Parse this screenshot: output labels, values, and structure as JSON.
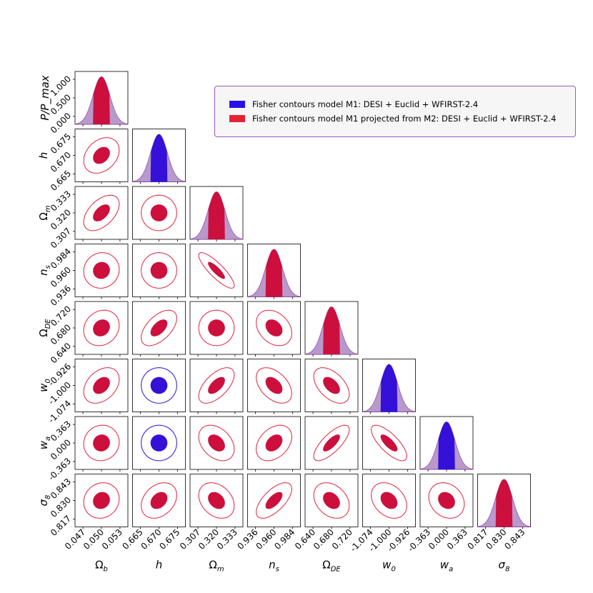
{
  "chart_data": {
    "type": "corner-plot",
    "title": "",
    "diag_ylabel": "P/P_max",
    "diag_ticks": [
      "0.000",
      "0.500",
      "1.000"
    ],
    "params": [
      {
        "key": "Omega_b",
        "label_base": "Ω",
        "label_sub": "b",
        "ticks": [
          "0.047",
          "0.050",
          "0.053"
        ],
        "center": 0.05
      },
      {
        "key": "h",
        "label_base": "h",
        "label_sub": "",
        "ticks": [
          "0.665",
          "0.670",
          "0.675"
        ],
        "center": 0.67
      },
      {
        "key": "Omega_m",
        "label_base": "Ω",
        "label_sub": "m",
        "ticks": [
          "0.307",
          "0.320",
          "0.333"
        ],
        "center": 0.32
      },
      {
        "key": "n_s",
        "label_base": "n",
        "label_sub": "s",
        "ticks": [
          "0.936",
          "0.960",
          "0.984"
        ],
        "center": 0.96
      },
      {
        "key": "Omega_DE",
        "label_base": "Ω",
        "label_sub": "DE",
        "ticks": [
          "0.640",
          "0.680",
          "0.720"
        ],
        "center": 0.68
      },
      {
        "key": "w0",
        "label_base": "w",
        "label_sub": "0",
        "ticks": [
          "-1.074",
          "-1.000",
          "-0.926"
        ],
        "center": -1.0
      },
      {
        "key": "wa",
        "label_base": "w",
        "label_sub": "a",
        "ticks": [
          "-0.363",
          "0.000",
          "0.363"
        ],
        "center": 0.0
      },
      {
        "key": "sigma8",
        "label_base": "σ",
        "label_sub": "8",
        "ticks": [
          "0.817",
          "0.830",
          "0.843"
        ],
        "center": 0.83
      }
    ],
    "correlations": [
      [
        0,
        1,
        0.3
      ],
      [
        0,
        2,
        0.5
      ],
      [
        0,
        3,
        0.05
      ],
      [
        0,
        4,
        0.15
      ],
      [
        0,
        5,
        0.35
      ],
      [
        0,
        6,
        0.05
      ],
      [
        0,
        7,
        0.1
      ],
      [
        1,
        2,
        0.0
      ],
      [
        1,
        3,
        0.0
      ],
      [
        1,
        4,
        0.55
      ],
      [
        1,
        5,
        0.0
      ],
      [
        1,
        6,
        0.0
      ],
      [
        1,
        7,
        0.3
      ],
      [
        2,
        3,
        -0.85
      ],
      [
        2,
        4,
        0.0
      ],
      [
        2,
        5,
        0.6
      ],
      [
        2,
        6,
        -0.35
      ],
      [
        2,
        7,
        -0.3
      ],
      [
        3,
        4,
        -0.3
      ],
      [
        3,
        5,
        -0.45
      ],
      [
        3,
        6,
        0.35
      ],
      [
        3,
        7,
        0.65
      ],
      [
        4,
        5,
        -0.5
      ],
      [
        4,
        6,
        0.75
      ],
      [
        4,
        7,
        -0.3
      ],
      [
        5,
        6,
        -0.75
      ],
      [
        5,
        7,
        -0.3
      ],
      [
        6,
        7,
        -0.2
      ]
    ],
    "series": [
      {
        "name": "Fisher contours model M1: DESI + Euclid + WFIRST-2.4",
        "color": "#2b10e6"
      },
      {
        "name": "Fisher contours model M1 projected from M2: DESI + Euclid + WFIRST-2.4",
        "color": "#e32238"
      }
    ],
    "colors": {
      "m1": "#2b10e6",
      "m2": "#e32238",
      "fill": "#cc0f3c",
      "blue_fill": "#3410d8",
      "tail": "#b999cc",
      "tail_line": "#8a4a9e"
    },
    "blue_visible_params": [
      "h",
      "w0",
      "wa"
    ]
  }
}
